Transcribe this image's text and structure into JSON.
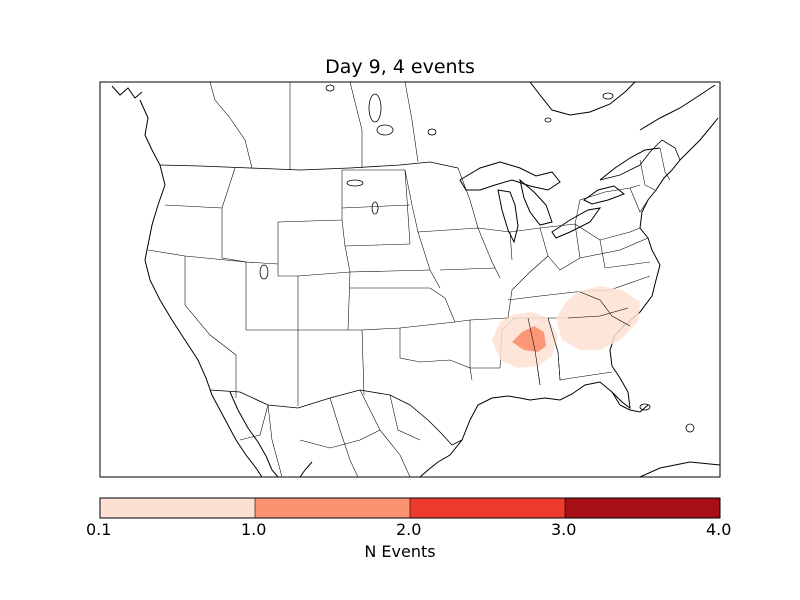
{
  "title": "Day 9, 4 events",
  "colorbar": {
    "label": "N Events",
    "ticks": [
      "0.1",
      "1.0",
      "2.0",
      "3.0",
      "4.0"
    ],
    "bins": [
      {
        "from": 0.1,
        "to": 1.0,
        "color": "#fee0d2"
      },
      {
        "from": 1.0,
        "to": 2.0,
        "color": "#fc9272"
      },
      {
        "from": 2.0,
        "to": 3.0,
        "color": "#ef3b2c"
      },
      {
        "from": 3.0,
        "to": 4.0,
        "color": "#a50f15"
      }
    ]
  },
  "event_areas": [
    {
      "region": "Mississippi / Alabama",
      "max_level": "1.0-2.0"
    },
    {
      "region": "Georgia / South Carolina",
      "max_level": "0.1-1.0"
    }
  ]
}
